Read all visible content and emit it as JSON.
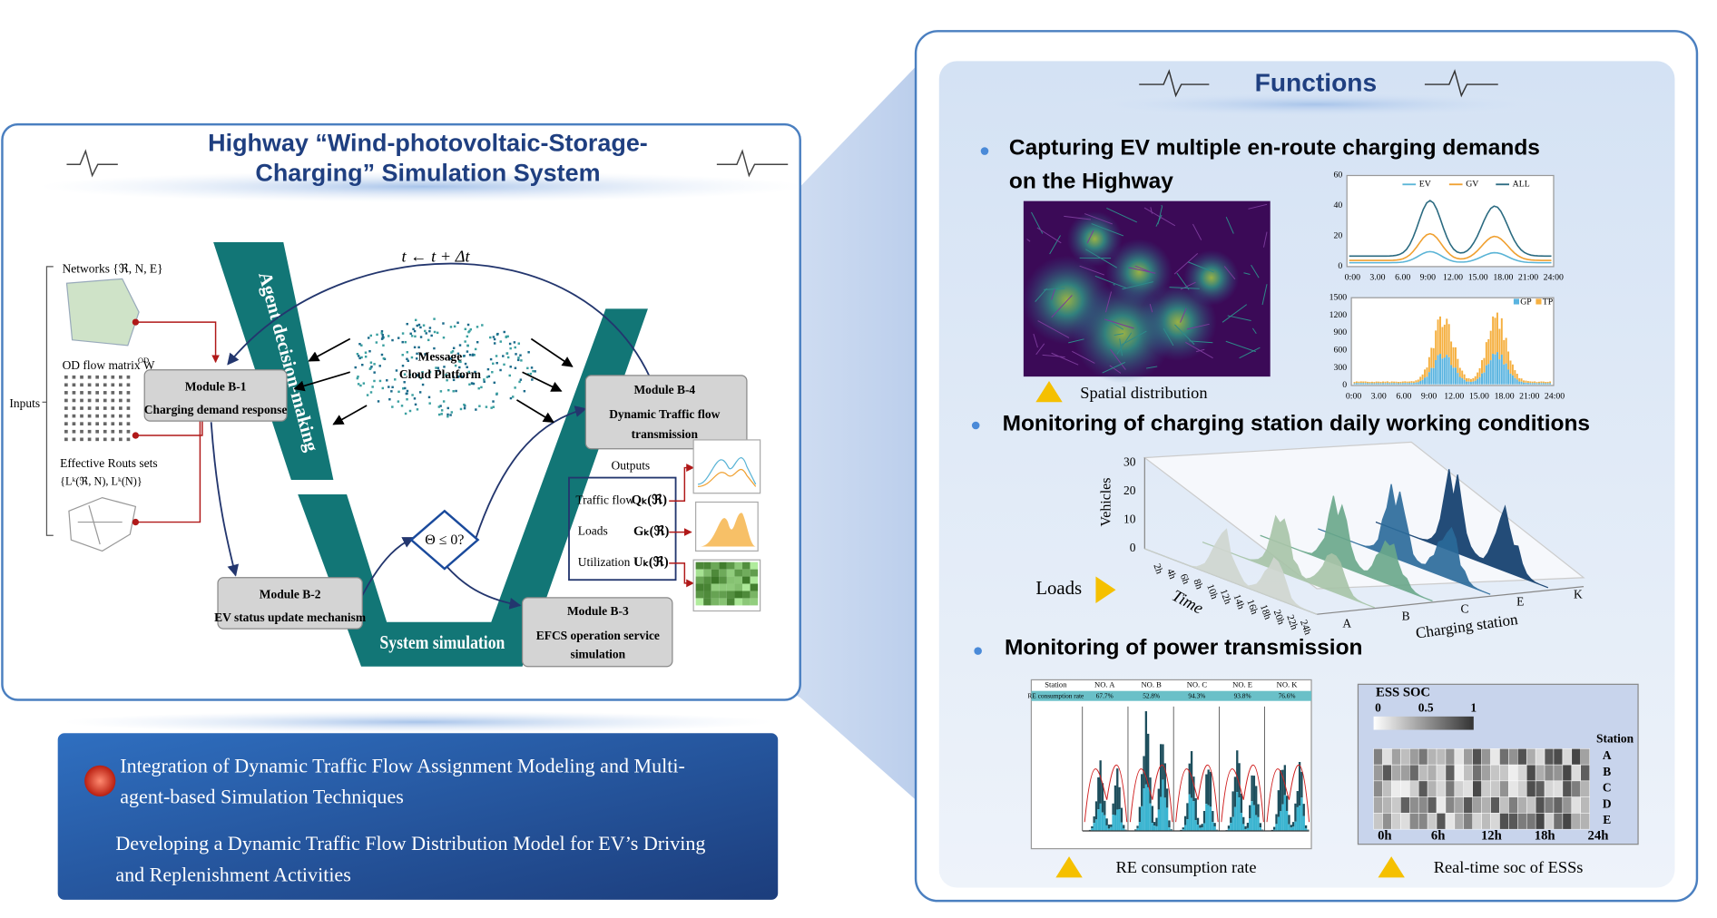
{
  "left": {
    "title": [
      "Highway “Wind-photovoltaic-Storage-",
      "Charging”  Simulation System"
    ],
    "inputs": "Inputs",
    "networks": "Networks {ℜ, N, E}",
    "od_matrix": "OD flow matrix W",
    "od_sup": "OD",
    "routes": "Effective Routs sets",
    "routes_formula": "{Lᵏ(ℜ, N), Lᵏ(N)}",
    "agent": "Agent decision-making",
    "system": "System simulation",
    "time_step": "t ← t + Δt",
    "condition": "Θ ≤ 0?",
    "cloud": [
      "Message",
      "Cloud Platform"
    ],
    "modules": [
      {
        "id": "Module B-1",
        "lines": [
          "Charging demand response"
        ]
      },
      {
        "id": "Module B-2",
        "lines": [
          "EV status update mechanism"
        ]
      },
      {
        "id": "Module B-3",
        "lines": [
          "EFCS operation service",
          "simulation"
        ]
      },
      {
        "id": "Module B-4",
        "lines": [
          "Dynamic Traffic flow",
          "transmission"
        ]
      }
    ],
    "outputs": {
      "title": "Outputs",
      "rows": [
        {
          "label": "Traffic flow",
          "symbol": "Qₖ(ℜ)"
        },
        {
          "label": "Loads",
          "symbol": "Gₖ(ℜ)"
        },
        {
          "label": "Utilization",
          "symbol": "Uₖ(ℜ)"
        }
      ]
    },
    "features": [
      [
        "Integration of Dynamic Traffic Flow Assignment Modeling and Multi-",
        "agent-based Simulation Techniques"
      ],
      [
        "Developing a Dynamic Traffic Flow Distribution Model for EV’s  Driving",
        "and Replenishment Activities"
      ]
    ]
  },
  "functions": {
    "title": "Functions",
    "sections": [
      [
        "Capturing  EV  multiple  en-route  charging  demands",
        "on the Highway"
      ],
      [
        "Monitoring of charging station daily working conditions"
      ],
      [
        "Monitoring of power transmission"
      ]
    ],
    "spatial_caption": "Spatial distribution",
    "line_chart": {
      "legend": [
        "EV",
        "GV",
        "ALL"
      ],
      "yticks": [
        "60",
        "40",
        "20",
        "0"
      ],
      "xticks": [
        "0:00",
        "3.00",
        "6.00",
        "9:00",
        "12.00",
        "15.00",
        "18.00",
        "21:00",
        "24:00"
      ]
    },
    "bar_chart": {
      "legend": [
        "GP",
        "TP"
      ],
      "yticks": [
        "1500",
        "1200",
        "900",
        "600",
        "300",
        "0"
      ],
      "xticks": [
        "0:00",
        "3.00",
        "6.00",
        "9:00",
        "12.00",
        "15.00",
        "18.00",
        "21:00",
        "24:00"
      ]
    },
    "surface": {
      "ylabel": "Vehicles",
      "yticks": [
        "30",
        "20",
        "10",
        "0"
      ],
      "time_label": "Time",
      "times": [
        "2h",
        "4h",
        "6h",
        "8h",
        "10h",
        "12h",
        "14h",
        "16h",
        "18h",
        "20h",
        "22h",
        "24h"
      ],
      "station_label": "Charging station",
      "stations": [
        "A",
        "B",
        "C",
        "E",
        "K"
      ],
      "loads": "Loads"
    },
    "re_table": {
      "header": [
        "Station",
        "NO. A",
        "NO. B",
        "NO. C",
        "NO. E",
        "NO. K"
      ],
      "row": [
        "RE consumption rate",
        "67.7%",
        "52.8%",
        "94.3%",
        "93.8%",
        "76.6%"
      ],
      "caption": "RE consumption rate"
    },
    "ess": {
      "title": "ESS SOC",
      "scale": [
        "0",
        "0.5",
        "1"
      ],
      "station_label": "Station",
      "stations": [
        "A",
        "B",
        "C",
        "D",
        "E"
      ],
      "xticks": [
        "0h",
        "6h",
        "12h",
        "18h",
        "24h"
      ],
      "caption": "Real-time soc of ESSs"
    }
  }
}
